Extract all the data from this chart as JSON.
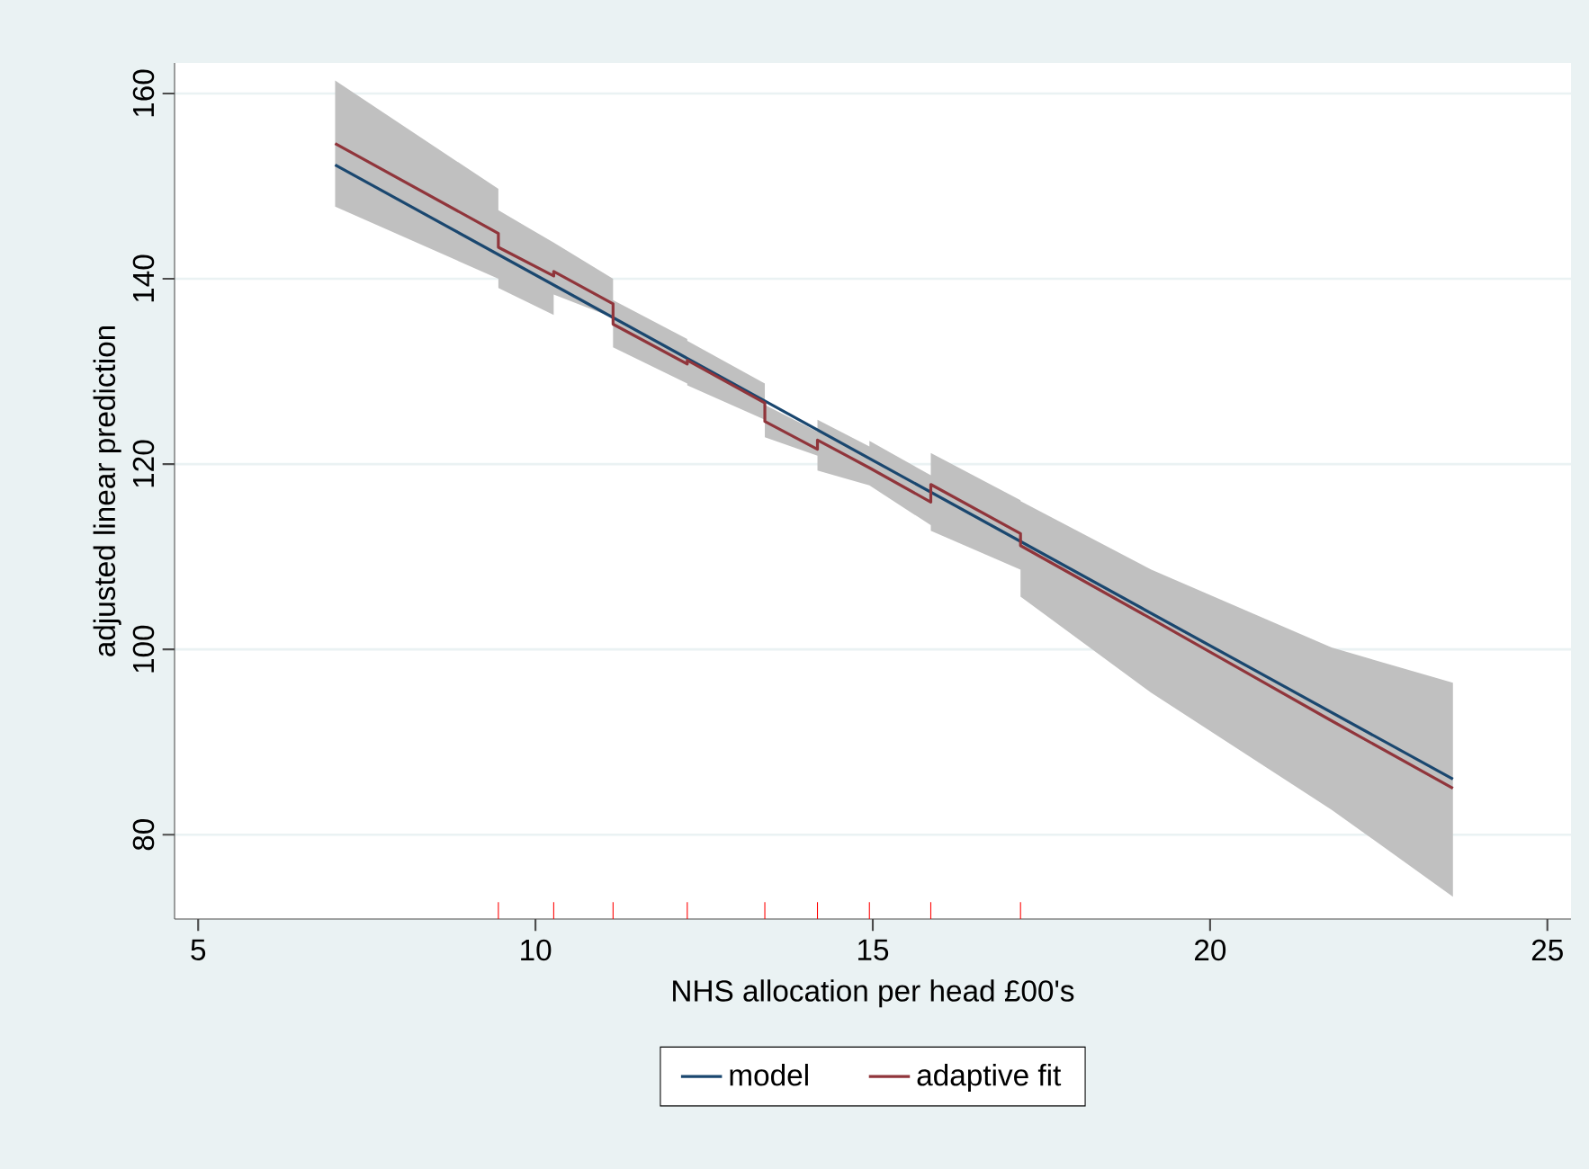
{
  "chart_data": {
    "type": "line",
    "xlabel": "NHS allocation per head £00's",
    "ylabel": "adjusted linear prediction",
    "xlim": [
      4.65,
      25.35
    ],
    "ylim": [
      70.9,
      163.3
    ],
    "xticks": [
      5,
      10,
      15,
      20,
      25,
      {
        "value": 9.45,
        "label": null
      },
      {
        "value": 10.27,
        "label": null
      },
      {
        "value": 11.15,
        "label": null
      },
      {
        "value": 12.25,
        "label": null
      },
      {
        "value": 13.4,
        "label": null
      },
      {
        "value": 14.18,
        "label": null
      },
      {
        "value": 14.95,
        "label": null
      },
      {
        "value": 15.86,
        "label": null
      },
      {
        "value": 17.19,
        "label": null
      }
    ],
    "yticks": [
      80,
      100,
      120,
      140,
      160
    ],
    "grid": "y",
    "legend": "bottom",
    "line_style": "solid",
    "marker": "none",
    "series": [
      {
        "name": "model",
        "color": "#1a476f",
        "x": [
          7.03,
          23.6
        ],
        "values": [
          152.3,
          86.0
        ]
      },
      {
        "name": "adaptive fit",
        "color": "#90353b",
        "x": [
          7.03,
          9.45,
          9.45,
          10.27,
          10.27,
          11.15,
          11.15,
          12.25,
          12.25,
          13.4,
          13.4,
          14.18,
          14.18,
          14.95,
          14.95,
          15.86,
          15.86,
          17.19,
          17.19,
          19.13,
          21.8,
          23.6
        ],
        "values": [
          154.6,
          144.9,
          143.4,
          140.3,
          140.8,
          137.3,
          135.1,
          130.8,
          131.2,
          126.6,
          124.6,
          121.6,
          122.6,
          119.6,
          119.6,
          115.9,
          117.8,
          112.5,
          111.2,
          103.3,
          92.3,
          85.0
        ],
        "upper": [
          161.4,
          149.7,
          147.4,
          143.9,
          143.9,
          140.0,
          137.7,
          133.5,
          133.3,
          128.7,
          126.4,
          123.5,
          124.8,
          121.9,
          122.5,
          118.8,
          121.2,
          116.1,
          116.0,
          108.6,
          100.2,
          96.4
        ],
        "lower": [
          147.8,
          140.0,
          139.0,
          136.1,
          138.3,
          135.8,
          132.6,
          128.7,
          128.5,
          124.8,
          122.9,
          120.9,
          119.3,
          117.7,
          117.7,
          113.4,
          112.8,
          108.6,
          105.7,
          95.3,
          82.7,
          73.3
        ]
      }
    ]
  }
}
